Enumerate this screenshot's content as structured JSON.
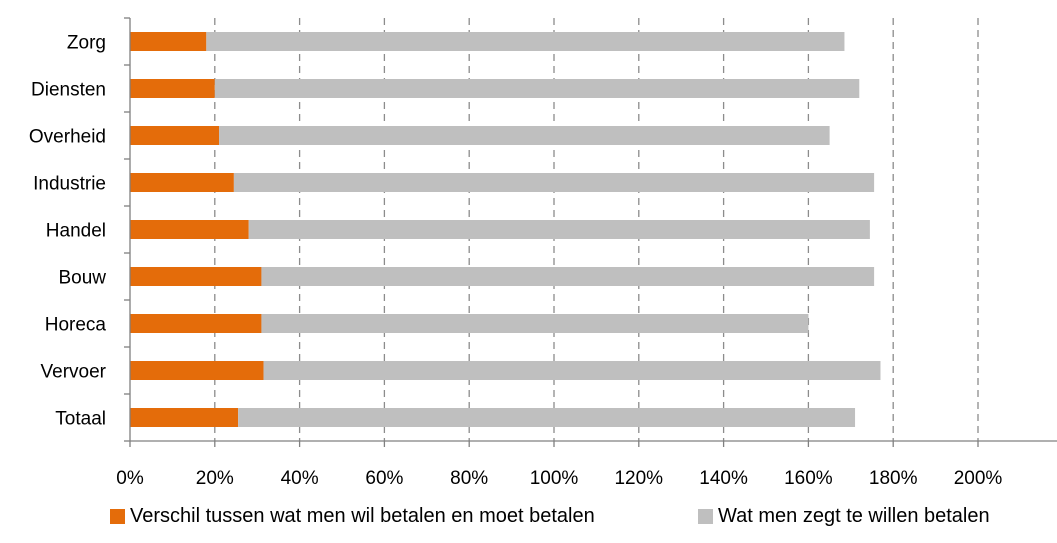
{
  "chart_data": {
    "type": "bar",
    "orientation": "horizontal",
    "stacked": true,
    "categories": [
      "Zorg",
      "Diensten",
      "Overheid",
      "Industrie",
      "Handel",
      "Bouw",
      "Horeca",
      "Vervoer",
      "Totaal"
    ],
    "series": [
      {
        "name": "Verschil tussen wat men wil betalen en moet betalen",
        "color": "#E46C0A",
        "values": [
          18,
          20,
          21,
          24.5,
          28,
          31,
          31,
          31.5,
          25.5
        ]
      },
      {
        "name": "Wat men zegt te willen betalen",
        "color": "#BFBFBF",
        "values": [
          150.5,
          152,
          144,
          151,
          146.5,
          144.5,
          129,
          145.5,
          145.5
        ]
      }
    ],
    "x_ticks": [
      "0%",
      "20%",
      "40%",
      "60%",
      "80%",
      "100%",
      "120%",
      "140%",
      "160%",
      "180%",
      "200%"
    ],
    "xlim": [
      0,
      200
    ],
    "x_unit": "%",
    "xlabel": "",
    "ylabel": "",
    "title": "",
    "grid": "vertical dashed",
    "legend_position": "bottom"
  }
}
